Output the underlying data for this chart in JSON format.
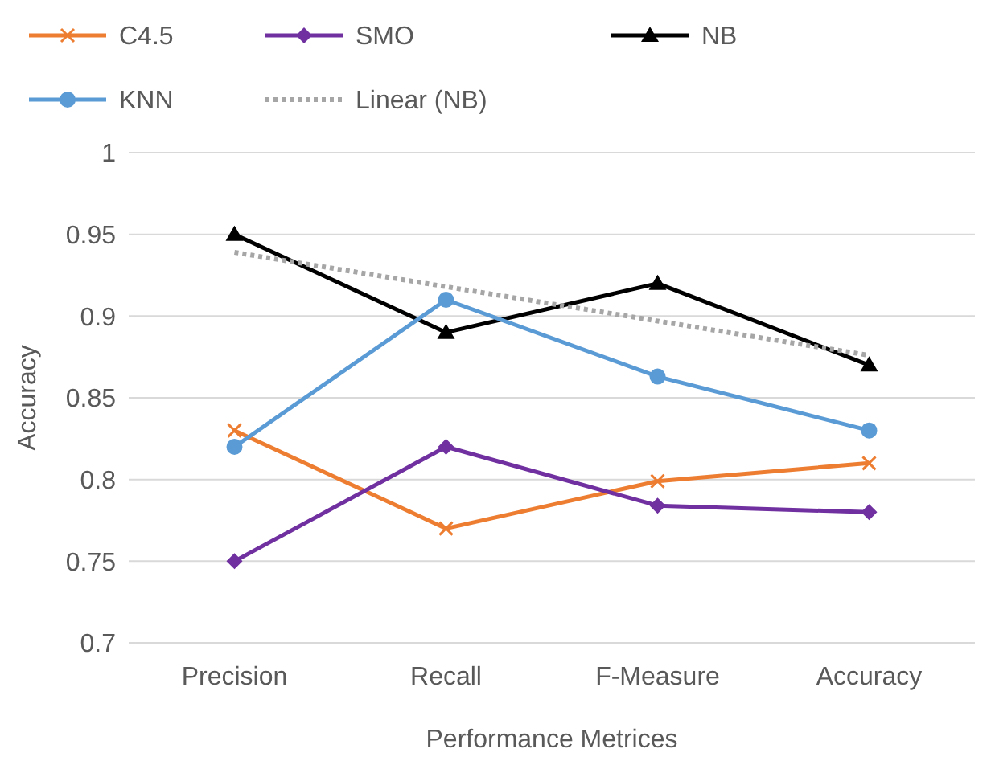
{
  "chart_data": {
    "type": "line",
    "xlabel": "Performance Metrices",
    "ylabel": "Accuracy",
    "categories": [
      "Precision",
      "Recall",
      "F-Measure",
      "Accuracy"
    ],
    "series": [
      {
        "name": "C4.5",
        "color": "#ed7d31",
        "values": [
          0.83,
          0.77,
          0.799,
          0.81
        ],
        "marker": "cross"
      },
      {
        "name": "SMO",
        "color": "#7030a0",
        "values": [
          0.75,
          0.82,
          0.784,
          0.78
        ],
        "marker": "diamond"
      },
      {
        "name": "NB",
        "color": "#000000",
        "values": [
          0.95,
          0.89,
          0.92,
          0.87
        ],
        "marker": "triangle"
      },
      {
        "name": "KNN",
        "color": "#5b9bd5",
        "values": [
          0.82,
          0.91,
          0.863,
          0.83
        ],
        "marker": "circle"
      },
      {
        "name": "Linear (NB)",
        "color": "#a6a6a6",
        "values": [
          0.939,
          0.918,
          0.897,
          0.876
        ],
        "marker": "none",
        "line_style": "dotted"
      }
    ],
    "ylim": [
      0.7,
      1
    ],
    "yticks": [
      {
        "value": 0.7,
        "label": "0.7"
      },
      {
        "value": 0.75,
        "label": "0.75"
      },
      {
        "value": 0.8,
        "label": "0.8"
      },
      {
        "value": 0.85,
        "label": "0.85"
      },
      {
        "value": 0.9,
        "label": "0.9"
      },
      {
        "value": 0.95,
        "label": "0.95"
      },
      {
        "value": 1,
        "label": "1"
      }
    ],
    "grid": "y",
    "legend": "top"
  }
}
